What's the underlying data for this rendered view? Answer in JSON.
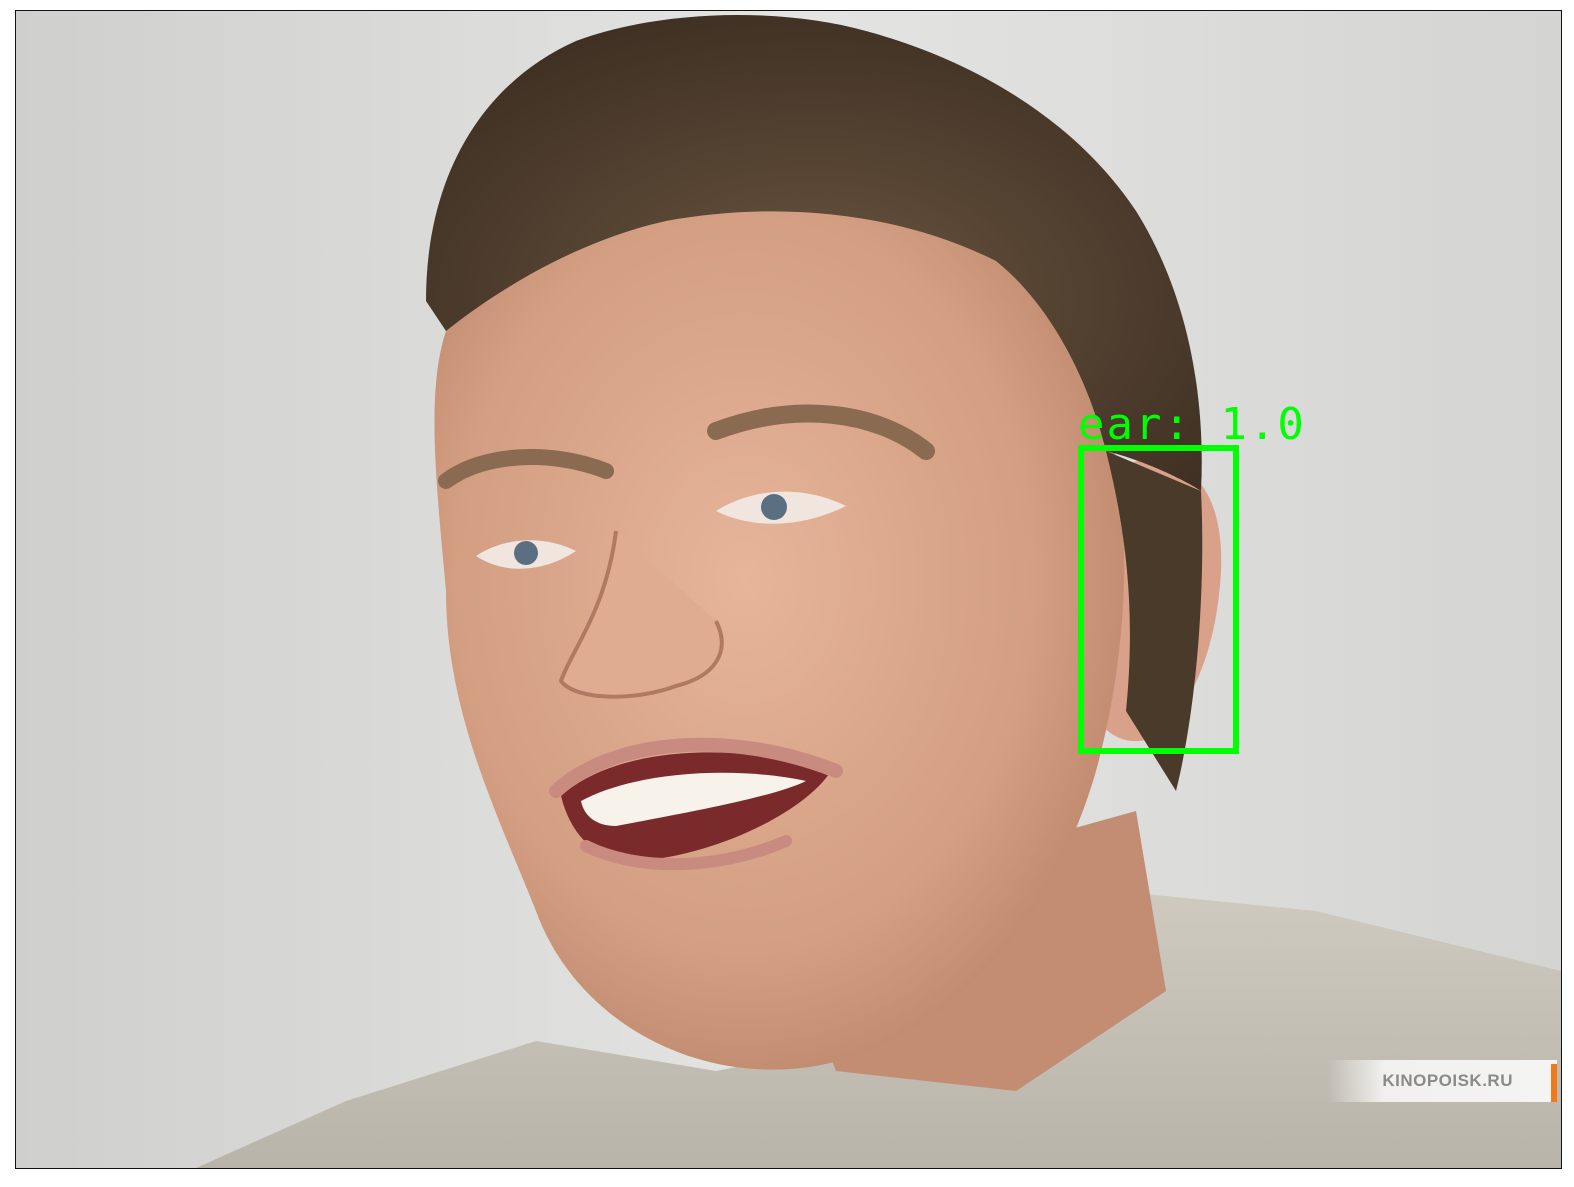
{
  "detection": {
    "label": "ear: 1.0",
    "color": "#00ff00"
  },
  "watermark": {
    "text": "KINOPOISK.RU"
  }
}
